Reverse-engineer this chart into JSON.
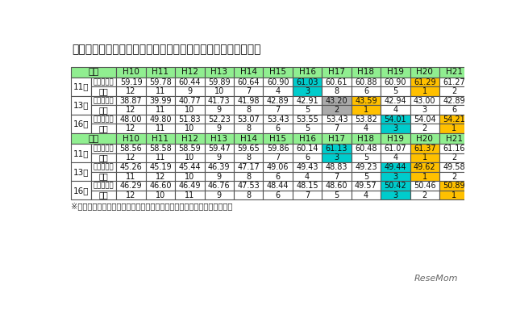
{
  "title": "表２　新体力テスト合計点の平成１０～２１年度における順位",
  "footnote": "※　記録（点）の数値は小数点以下第３位を四捨五入して表記してある。",
  "years": [
    "H10",
    "H11",
    "H12",
    "H13",
    "H14",
    "H15",
    "H16",
    "H17",
    "H18",
    "H19",
    "H20",
    "H21"
  ],
  "header_bg": "#90EE90",
  "color_map": {
    "W": "#FFFFFF",
    "C": "#00CCCC",
    "G": "#FFC000",
    "S": "#AAAAAA"
  },
  "boys": {
    "label": "男子",
    "ages": [
      {
        "age": "11歳",
        "records": [
          "59.19",
          "59.78",
          "60.44",
          "59.89",
          "60.64",
          "60.90",
          "61.03",
          "60.61",
          "60.88",
          "60.90",
          "61.29",
          "61.27"
        ],
        "ranks": [
          "12",
          "11",
          "9",
          "10",
          "7",
          "4",
          "3",
          "8",
          "6",
          "5",
          "1",
          "2"
        ],
        "record_colors": [
          "W",
          "W",
          "W",
          "W",
          "W",
          "W",
          "C",
          "W",
          "W",
          "W",
          "G",
          "W"
        ],
        "rank_colors": [
          "W",
          "W",
          "W",
          "W",
          "W",
          "W",
          "C",
          "W",
          "W",
          "W",
          "G",
          "W"
        ]
      },
      {
        "age": "13歳",
        "records": [
          "38.87",
          "39.99",
          "40.77",
          "41.73",
          "41.98",
          "42.89",
          "42.91",
          "43.20",
          "43.59",
          "42.94",
          "43.00",
          "42.89"
        ],
        "ranks": [
          "12",
          "11",
          "10",
          "9",
          "8",
          "7",
          "5",
          "2",
          "1",
          "4",
          "3",
          "6"
        ],
        "record_colors": [
          "W",
          "W",
          "W",
          "W",
          "W",
          "W",
          "W",
          "S",
          "G",
          "W",
          "W",
          "W"
        ],
        "rank_colors": [
          "W",
          "W",
          "W",
          "W",
          "W",
          "W",
          "W",
          "S",
          "G",
          "W",
          "W",
          "W"
        ]
      },
      {
        "age": "16歳",
        "records": [
          "48.00",
          "49.80",
          "51.83",
          "52.23",
          "53.07",
          "53.43",
          "53.55",
          "53.43",
          "53.82",
          "54.01",
          "54.04",
          "54.21"
        ],
        "ranks": [
          "12",
          "11",
          "10",
          "9",
          "8",
          "6",
          "5",
          "7",
          "4",
          "3",
          "2",
          "1"
        ],
        "record_colors": [
          "W",
          "W",
          "W",
          "W",
          "W",
          "W",
          "W",
          "W",
          "W",
          "C",
          "W",
          "G"
        ],
        "rank_colors": [
          "W",
          "W",
          "W",
          "W",
          "W",
          "W",
          "W",
          "W",
          "W",
          "C",
          "W",
          "G"
        ]
      }
    ]
  },
  "girls": {
    "label": "女子",
    "ages": [
      {
        "age": "11歳",
        "records": [
          "58.56",
          "58.58",
          "58.59",
          "59.47",
          "59.65",
          "59.86",
          "60.14",
          "61.13",
          "60.48",
          "61.07",
          "61.37",
          "61.16"
        ],
        "ranks": [
          "12",
          "11",
          "10",
          "9",
          "8",
          "7",
          "6",
          "3",
          "5",
          "4",
          "1",
          "2"
        ],
        "record_colors": [
          "W",
          "W",
          "W",
          "W",
          "W",
          "W",
          "W",
          "C",
          "W",
          "W",
          "G",
          "W"
        ],
        "rank_colors": [
          "W",
          "W",
          "W",
          "W",
          "W",
          "W",
          "W",
          "C",
          "W",
          "W",
          "G",
          "W"
        ]
      },
      {
        "age": "13歳",
        "records": [
          "45.26",
          "45.19",
          "45.44",
          "46.39",
          "47.17",
          "49.06",
          "49.43",
          "48.83",
          "49.23",
          "49.44",
          "49.62",
          "49.58"
        ],
        "ranks": [
          "11",
          "12",
          "10",
          "9",
          "8",
          "6",
          "4",
          "7",
          "5",
          "3",
          "1",
          "2"
        ],
        "record_colors": [
          "W",
          "W",
          "W",
          "W",
          "W",
          "W",
          "W",
          "W",
          "W",
          "C",
          "G",
          "W"
        ],
        "rank_colors": [
          "W",
          "W",
          "W",
          "W",
          "W",
          "W",
          "W",
          "W",
          "W",
          "C",
          "G",
          "W"
        ]
      },
      {
        "age": "16歳",
        "records": [
          "46.29",
          "46.60",
          "46.49",
          "46.76",
          "47.53",
          "48.44",
          "48.15",
          "48.60",
          "49.57",
          "50.42",
          "50.46",
          "50.89"
        ],
        "ranks": [
          "12",
          "10",
          "11",
          "9",
          "8",
          "6",
          "7",
          "5",
          "4",
          "3",
          "2",
          "1"
        ],
        "record_colors": [
          "W",
          "W",
          "W",
          "W",
          "W",
          "W",
          "W",
          "W",
          "W",
          "C",
          "W",
          "G"
        ],
        "rank_colors": [
          "W",
          "W",
          "W",
          "W",
          "W",
          "W",
          "W",
          "W",
          "W",
          "C",
          "W",
          "G"
        ]
      }
    ]
  }
}
